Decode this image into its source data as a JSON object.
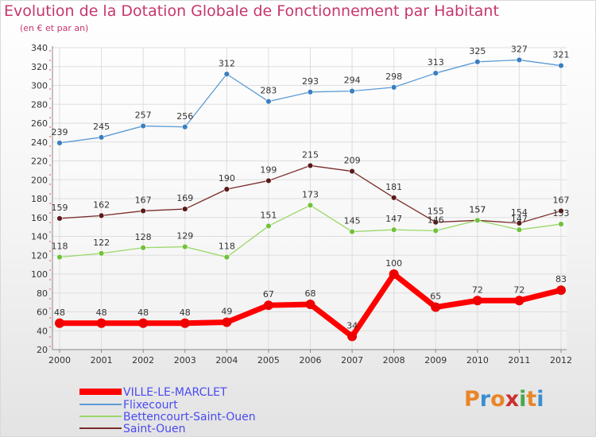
{
  "title": "Evolution de la Dotation Globale de Fonctionnement par Habitant",
  "subtitle": "(en € et par an)",
  "logo": {
    "letters": [
      "P",
      "r",
      "o",
      "x",
      "i",
      "t",
      "i"
    ],
    "colors": [
      "#e8862a",
      "#3a8fd0",
      "#e8862a",
      "#cc2f2f",
      "#4aa84a",
      "#e8862a",
      "#3a8fd0"
    ]
  },
  "chart_data": {
    "type": "line",
    "title": "Evolution de la Dotation Globale de Fonctionnement par Habitant",
    "subtitle": "(en € et par an)",
    "xlabel": "",
    "ylabel": "",
    "ylim": [
      20,
      340
    ],
    "yticks": [
      20,
      40,
      60,
      80,
      100,
      120,
      140,
      160,
      180,
      200,
      220,
      240,
      260,
      280,
      300,
      320,
      340
    ],
    "categories": [
      "2000",
      "2001",
      "2002",
      "2003",
      "2004",
      "2005",
      "2006",
      "2007",
      "2008",
      "2009",
      "2010",
      "2011",
      "2012"
    ],
    "series": [
      {
        "name": "Flixecourt",
        "color": "#5b9bd5",
        "marker": "#3a7fc1",
        "values": [
          239,
          245,
          257,
          256,
          312,
          283,
          293,
          294,
          298,
          313,
          325,
          327,
          321
        ]
      },
      {
        "name": "Saint-Ouen",
        "color": "#7b2c2c",
        "marker": "#5a1a1a",
        "values": [
          159,
          162,
          167,
          169,
          190,
          199,
          215,
          209,
          181,
          155,
          157,
          154,
          167
        ]
      },
      {
        "name": "Bettencourt-Saint-Ouen",
        "color": "#9ad86a",
        "marker": "#6fc23a",
        "values": [
          118,
          122,
          128,
          129,
          118,
          151,
          173,
          145,
          147,
          146,
          157,
          147,
          153
        ]
      },
      {
        "name": "VILLE-LE-MARCLET",
        "color": "#ff0000",
        "marker": "#ee0000",
        "values": [
          48,
          48,
          48,
          48,
          49,
          67,
          68,
          34,
          100,
          65,
          72,
          72,
          83
        ]
      }
    ],
    "data_labels": {
      "Flixecourt": [
        "239",
        "245",
        "257",
        "256",
        "312",
        "283",
        "293",
        "294",
        "298",
        "313",
        "325",
        "327",
        "321"
      ],
      "Saint-Ouen": [
        "159",
        "162",
        "167",
        "169",
        "190",
        "199",
        "215",
        "209",
        "181",
        "155",
        "157",
        "154",
        "167"
      ],
      "Bettencourt-Saint-Ouen": [
        "118",
        "122",
        "128",
        "129",
        "118",
        "151",
        "173",
        "145",
        "147",
        "146",
        "157",
        "147",
        "153"
      ],
      "VILLE-LE-MARCLET": [
        "48",
        "48",
        "48",
        "48",
        "49",
        "67",
        "68",
        "34",
        "100",
        "65",
        "72",
        "72",
        "83"
      ]
    },
    "legend": [
      {
        "name": "VILLE-LE-MARCLET",
        "color": "#ff0000",
        "text_color": "#4a4af0"
      },
      {
        "name": "Flixecourt",
        "color": "#5b9bd5",
        "text_color": "#4a4af0"
      },
      {
        "name": "Bettencourt-Saint-Ouen",
        "color": "#9ad86a",
        "text_color": "#4a4af0"
      },
      {
        "name": "Saint-Ouen",
        "color": "#7b2c2c",
        "text_color": "#4a4af0"
      }
    ],
    "grid": true,
    "legend_position": "bottom-left"
  }
}
